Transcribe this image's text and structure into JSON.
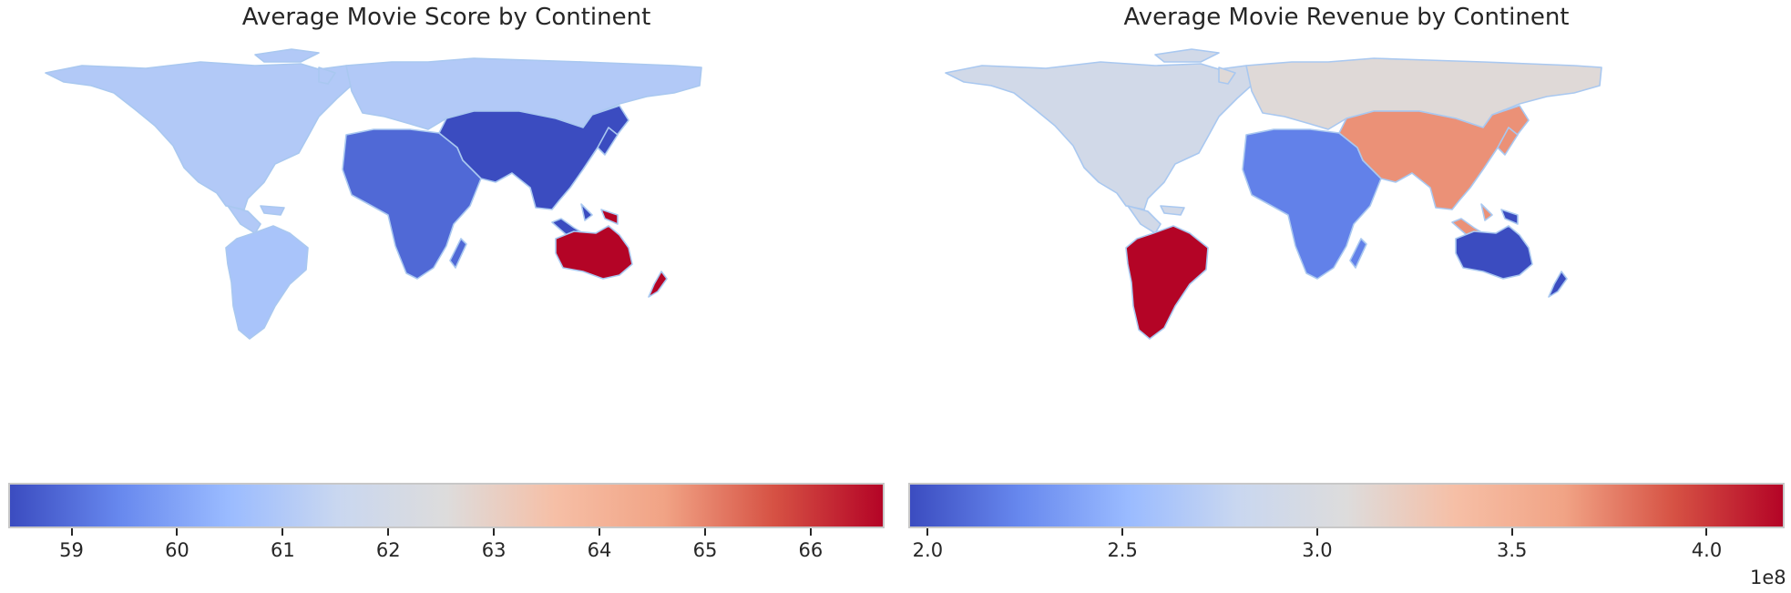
{
  "maps": [
    {
      "title": "Average Movie Score by Continent",
      "colorbar": {
        "min": 58.4,
        "max": 66.7,
        "ticks": [
          "59",
          "60",
          "61",
          "62",
          "63",
          "64",
          "65",
          "66"
        ],
        "offset_label": ""
      },
      "regions": [
        {
          "name": "North America",
          "value": 61.0
        },
        {
          "name": "South America",
          "value": 60.8
        },
        {
          "name": "Europe",
          "value": 61.0
        },
        {
          "name": "Africa",
          "value": 58.9
        },
        {
          "name": "Asia",
          "value": 58.4
        },
        {
          "name": "Oceania",
          "value": 66.7
        }
      ]
    },
    {
      "title": "Average Movie Revenue by Continent",
      "colorbar": {
        "min": 1.95,
        "max": 4.2,
        "ticks": [
          "2.0",
          "2.5",
          "3.0",
          "3.5",
          "4.0"
        ],
        "offset_label": "1e8"
      },
      "regions": [
        {
          "name": "North America",
          "value": 2.9
        },
        {
          "name": "South America",
          "value": 4.2
        },
        {
          "name": "Europe",
          "value": 3.1
        },
        {
          "name": "Africa",
          "value": 2.2
        },
        {
          "name": "Asia",
          "value": 3.7
        },
        {
          "name": "Oceania",
          "value": 1.95
        }
      ]
    }
  ],
  "colormap": "coolwarm",
  "colormap_stops": [
    "#3b4cc0",
    "#6788ee",
    "#9abbff",
    "#c9d7f0",
    "#dddcdc",
    "#f6bfa6",
    "#f1a385",
    "#d65244",
    "#b40426"
  ]
}
